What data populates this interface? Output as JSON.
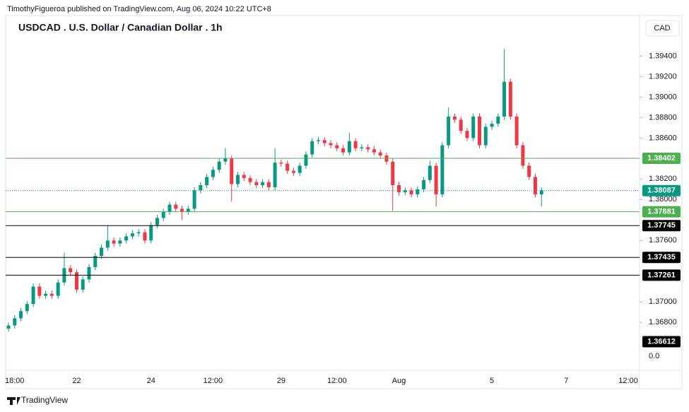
{
  "header": {
    "published": "TimothyFigueroa published on TradingView.com, Aug 06, 2024 10:22 UTC+8",
    "footer": "TradingView"
  },
  "chart_data": {
    "type": "candlestick",
    "title": "USDCAD . U.S. Dollar / Canadian Dollar . 1h",
    "currency": "CAD",
    "up_color": "#089981",
    "down_color": "#f23645",
    "categories": [
      null,
      "18:00",
      null,
      null,
      null,
      null,
      null,
      null,
      null,
      null,
      null,
      "22",
      null,
      null,
      null,
      null,
      null,
      null,
      null,
      null,
      null,
      null,
      null,
      "24",
      null,
      null,
      null,
      null,
      null,
      null,
      null,
      null,
      null,
      "12:00",
      null,
      null,
      null,
      null,
      null,
      null,
      null,
      null,
      null,
      null,
      "29",
      null,
      null,
      null,
      null,
      null,
      null,
      null,
      null,
      "12:00",
      null,
      null,
      null,
      null,
      null,
      null,
      null,
      null,
      null,
      "Aug",
      null,
      null,
      null,
      null,
      null,
      null,
      null,
      null,
      null,
      null,
      null,
      null,
      null,
      null,
      "5",
      null,
      null,
      null,
      null,
      null,
      null,
      null,
      null,
      null,
      null,
      null,
      "7",
      null,
      null,
      null,
      null,
      null,
      null,
      null,
      null,
      null,
      "12:00"
    ],
    "open": [
      1.3674,
      1.3677,
      1.3684,
      1.3691,
      1.3698,
      1.3715,
      1.3706,
      1.3708,
      1.3706,
      1.3719,
      1.3733,
      1.3729,
      1.3712,
      1.3722,
      1.3734,
      1.3745,
      1.3753,
      1.376,
      1.3757,
      1.376,
      1.3764,
      1.3767,
      1.3768,
      1.376,
      1.3775,
      1.3782,
      1.3788,
      1.3795,
      1.3791,
      1.3788,
      1.3791,
      1.3809,
      1.3814,
      1.3822,
      1.3829,
      1.3837,
      1.384,
      1.3815,
      1.3824,
      1.3821,
      1.3817,
      1.3814,
      1.3817,
      1.3812,
      1.3836,
      1.3835,
      1.3828,
      1.3826,
      1.3833,
      1.3844,
      1.3857,
      1.3858,
      1.3855,
      1.3853,
      1.385,
      1.3846,
      1.3857,
      1.385,
      1.3851,
      1.3849,
      1.3846,
      1.3843,
      1.3837,
      1.3814,
      1.3807,
      1.3809,
      1.3805,
      1.381,
      1.3819,
      1.3833,
      1.3805,
      1.3853,
      1.3881,
      1.3878,
      1.3867,
      1.386,
      1.3881,
      1.3853,
      1.3871,
      1.3874,
      1.3881,
      1.3915,
      1.3881,
      1.3853,
      1.3833,
      1.3822,
      1.3805,
      null,
      null,
      null,
      null,
      null,
      null,
      null,
      null,
      null,
      null,
      null,
      null,
      null,
      null
    ],
    "high": [
      1.368,
      1.3687,
      1.3694,
      1.3701,
      1.3718,
      1.3718,
      1.3711,
      1.3711,
      1.3722,
      1.3748,
      1.3736,
      1.3732,
      1.3725,
      1.3737,
      1.3748,
      1.3756,
      1.3775,
      1.3763,
      1.3763,
      1.3767,
      1.377,
      1.3771,
      1.3771,
      1.3778,
      1.3785,
      1.3791,
      1.3798,
      1.3798,
      1.3794,
      1.3794,
      1.3812,
      1.3817,
      1.3825,
      1.3832,
      1.384,
      1.385,
      1.3843,
      1.3827,
      1.3827,
      1.3824,
      1.382,
      1.382,
      1.382,
      1.385,
      1.3839,
      1.3838,
      1.3831,
      1.3836,
      1.3847,
      1.386,
      1.3861,
      1.3861,
      1.3858,
      1.3856,
      1.3853,
      1.3865,
      1.386,
      1.3854,
      1.3854,
      1.3852,
      1.3849,
      1.3846,
      1.384,
      1.3817,
      1.3812,
      1.3812,
      1.3813,
      1.3822,
      1.3838,
      1.3836,
      1.3856,
      1.389,
      1.3884,
      1.3881,
      1.387,
      1.3884,
      1.3884,
      1.3874,
      1.3877,
      1.3884,
      1.3947,
      1.3918,
      1.3884,
      1.3856,
      1.3836,
      1.3825,
      1.3812,
      null,
      null,
      null,
      null,
      null,
      null,
      null,
      null,
      null,
      null,
      null,
      null,
      null,
      null
    ],
    "low": [
      1.3671,
      1.3674,
      1.3681,
      1.3688,
      1.3695,
      1.3703,
      1.3703,
      1.3703,
      1.3703,
      1.3716,
      1.3726,
      1.3709,
      1.3709,
      1.3719,
      1.3731,
      1.3742,
      1.375,
      1.3754,
      1.3754,
      1.3757,
      1.3761,
      1.3764,
      1.3757,
      1.3757,
      1.3772,
      1.3779,
      1.3785,
      1.3788,
      1.378,
      1.3785,
      1.3788,
      1.3806,
      1.3811,
      1.3819,
      1.3826,
      1.3834,
      1.3798,
      1.3812,
      1.3818,
      1.3814,
      1.3811,
      1.3811,
      1.3809,
      1.3809,
      1.3832,
      1.3825,
      1.3823,
      1.3823,
      1.383,
      1.3841,
      1.3854,
      1.3852,
      1.385,
      1.3847,
      1.3843,
      1.3843,
      1.3847,
      1.3847,
      1.3846,
      1.3843,
      1.384,
      1.3834,
      1.3789,
      1.3804,
      1.3804,
      1.3802,
      1.3802,
      1.3807,
      1.3816,
      1.3793,
      1.3802,
      1.385,
      1.3875,
      1.3864,
      1.3857,
      1.3857,
      1.385,
      1.385,
      1.3868,
      1.3871,
      1.3878,
      1.3878,
      1.385,
      1.383,
      1.3819,
      1.3802,
      1.3793,
      null,
      null,
      null,
      null,
      null,
      null,
      null,
      null,
      null,
      null,
      null,
      null,
      null,
      null
    ],
    "close": [
      1.3677,
      1.3684,
      1.3691,
      1.3698,
      1.3715,
      1.3706,
      1.3708,
      1.3706,
      1.3719,
      1.3733,
      1.3729,
      1.3712,
      1.3722,
      1.3734,
      1.3745,
      1.3753,
      1.376,
      1.3757,
      1.376,
      1.3764,
      1.3767,
      1.3768,
      1.376,
      1.3775,
      1.3782,
      1.3788,
      1.3795,
      1.3791,
      1.3788,
      1.3791,
      1.3809,
      1.3814,
      1.3822,
      1.3829,
      1.3837,
      1.384,
      1.3815,
      1.3824,
      1.3821,
      1.3817,
      1.3814,
      1.3817,
      1.3812,
      1.3836,
      1.3835,
      1.3828,
      1.3826,
      1.3833,
      1.3844,
      1.3857,
      1.3858,
      1.3855,
      1.3853,
      1.385,
      1.3846,
      1.3857,
      1.385,
      1.3851,
      1.3849,
      1.3846,
      1.3843,
      1.3837,
      1.3814,
      1.3807,
      1.3809,
      1.3805,
      1.381,
      1.3819,
      1.3833,
      1.3805,
      1.3853,
      1.3881,
      1.3878,
      1.3867,
      1.386,
      1.3881,
      1.3853,
      1.3871,
      1.3874,
      1.3881,
      1.3915,
      1.3881,
      1.3853,
      1.3833,
      1.3822,
      1.3805,
      1.3809,
      null,
      null,
      null,
      null,
      null,
      null,
      null,
      null,
      null,
      null,
      null,
      null,
      null,
      null
    ],
    "ylim": [
      1.3636,
      1.3981
    ],
    "yticks": [
      {
        "value": 1.394,
        "label": "1.39400"
      },
      {
        "value": 1.392,
        "label": "1.39200"
      },
      {
        "value": 1.39,
        "label": "1.39000"
      },
      {
        "value": 1.388,
        "label": "1.38800"
      },
      {
        "value": 1.386,
        "label": "1.38600"
      },
      {
        "value": 1.382,
        "label": "1.38200"
      },
      {
        "value": 1.38,
        "label": "1.38000"
      },
      {
        "value": 1.376,
        "label": "1.37600"
      },
      {
        "value": 1.37,
        "label": "1.37000"
      },
      {
        "value": 1.368,
        "label": "1.36800"
      }
    ],
    "indicator_label": "0.0",
    "current_price": {
      "value": 1.38087,
      "color": "#089981"
    },
    "levels": [
      {
        "value": 1.38402,
        "color": "#4caf50",
        "line": true
      },
      {
        "value": 1.37881,
        "color": "#4caf50",
        "line": true
      },
      {
        "value": 1.37745,
        "color": "#000000",
        "line": true
      },
      {
        "value": 1.37435,
        "color": "#000000",
        "line": true
      },
      {
        "value": 1.37261,
        "color": "#000000",
        "line": true
      },
      {
        "value": 1.36612,
        "color": "#000000",
        "line": false
      }
    ]
  }
}
